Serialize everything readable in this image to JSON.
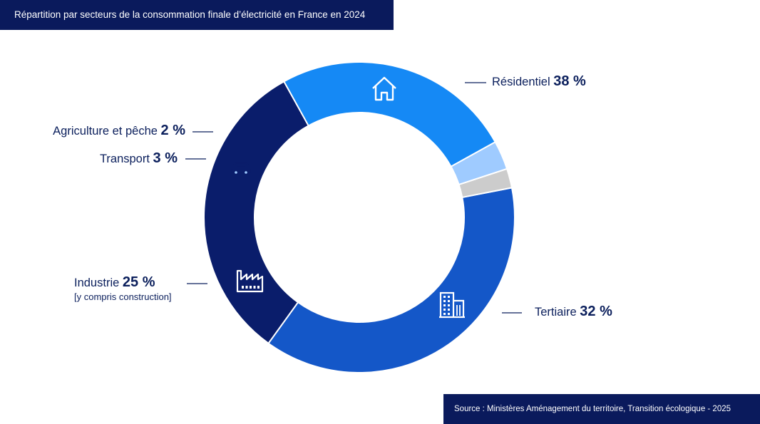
{
  "header": {
    "title": "Répartition par secteurs de la consommation finale d’électricité en France en 2024"
  },
  "footer": {
    "source": "Source : Ministères Aménagement du territoire, Transition écologique - 2025"
  },
  "chart_data": {
    "type": "pie",
    "donut": true,
    "categories": [
      "Résidentiel",
      "Tertiaire",
      "Industrie",
      "Transport",
      "Agriculture et pêche"
    ],
    "values": [
      38,
      32,
      25,
      3,
      2
    ],
    "value_labels": [
      "38 %",
      "32 %",
      "25 %",
      "3 %",
      "2 %"
    ],
    "notes": {
      "Industrie": "[y compris construction]"
    },
    "colors": [
      "#1457c8",
      "#0a1d6b",
      "#1589f5",
      "#9fcbff",
      "#cccccc"
    ],
    "icons": [
      "house-icon",
      "office-building-icon",
      "factory-icon",
      "car-icon",
      ""
    ],
    "title": "Répartition par secteurs de la consommation finale d’électricité en France en 2024"
  }
}
